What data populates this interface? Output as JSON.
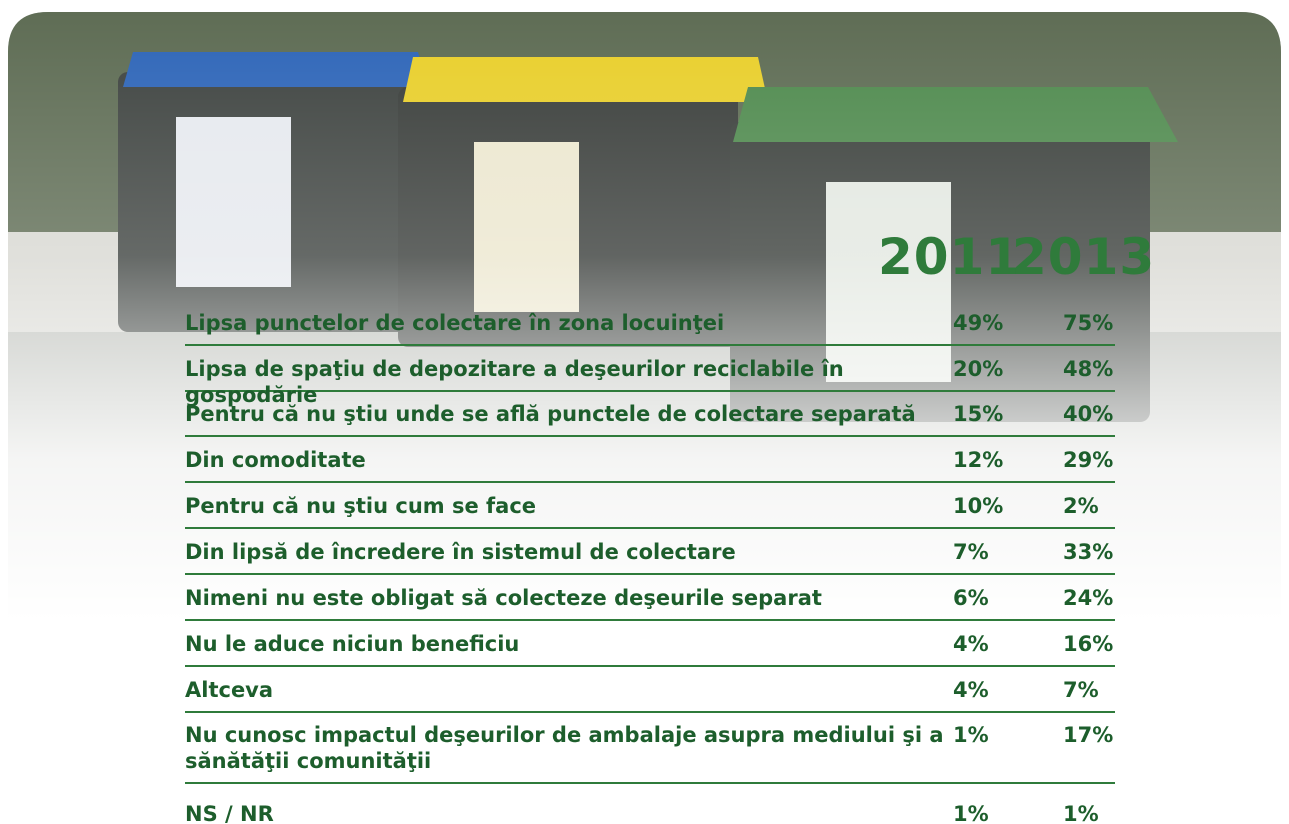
{
  "table": {
    "header": [
      "2011",
      "2013"
    ],
    "rows": [
      [
        "Lipsa punctelor de colectare în zona locuinţei",
        "49%",
        "75%"
      ],
      [
        "Lipsa de spaţiu de depozitare a deşeurilor reciclabile în gospodărie",
        "20%",
        "48%"
      ],
      [
        "Pentru că nu ştiu unde se află punctele de colectare separată",
        "15%",
        "40%"
      ],
      [
        "Din comoditate",
        "12%",
        "29%"
      ],
      [
        "Pentru că nu ştiu cum se face",
        "10%",
        "2%"
      ],
      [
        "Din lipsă de încredere în sistemul de colectare",
        "7%",
        "33%"
      ],
      [
        "Nimeni nu este obligat să colecteze deşeurile separat",
        "6%",
        "24%"
      ],
      [
        "Nu le aduce niciun beneficiu",
        "4%",
        "16%"
      ],
      [
        "Altceva",
        "4%",
        "7%"
      ],
      [
        "Nu cunosc impactul deşeurilor de ambalaje asupra mediului şi a sănătăţii comunităţii",
        "1%",
        "17%"
      ],
      [
        "NS / NR",
        "1%",
        "1%"
      ]
    ]
  }
}
